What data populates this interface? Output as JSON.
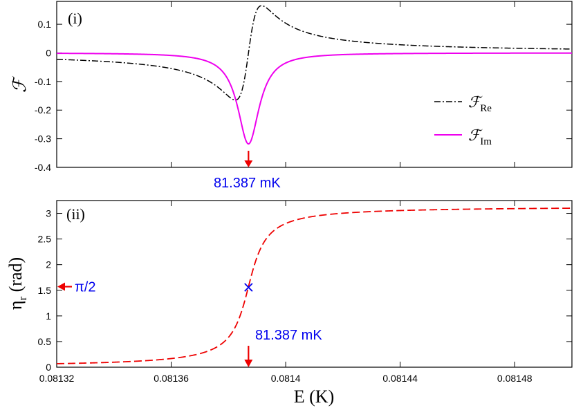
{
  "chart_data": [
    {
      "panel_label": "(i)",
      "type": "line",
      "ylabel": "ℱ",
      "ylim": [
        -0.4,
        0.18
      ],
      "xlim": [
        0.08132,
        0.0815
      ],
      "y_ticks": [
        {
          "value": 0.1,
          "label": "0.1"
        },
        {
          "value": 0,
          "label": "0"
        },
        {
          "value": -0.1,
          "label": "-0.1"
        },
        {
          "value": -0.2,
          "label": "-0.2"
        },
        {
          "value": -0.3,
          "label": "-0.3"
        },
        {
          "value": -0.4,
          "label": "-0.4"
        }
      ],
      "resonance": {
        "E0": 0.081387,
        "gamma": 4.6e-06,
        "amp": 0.318
      },
      "series": [
        {
          "name": "Re",
          "legend_symbol": "ℱ",
          "legend_sub": "Re",
          "color": "#000000",
          "style": "dash-dot"
        },
        {
          "name": "Im",
          "legend_symbol": "ℱ",
          "legend_sub": "Im",
          "color": "#ee00ee",
          "style": "solid"
        }
      ],
      "annotation": {
        "text": "81.387 mK",
        "x": 0.081387,
        "color": "#0000ee",
        "arrow_color": "#ee0000"
      }
    },
    {
      "panel_label": "(ii)",
      "type": "line",
      "xlabel": "E (K)",
      "ylabel_main": "η",
      "ylabel_sub": "r",
      "ylabel_unit": " (rad)",
      "ylim": [
        0,
        3.25
      ],
      "xlim": [
        0.08132,
        0.0815
      ],
      "x_ticks": [
        {
          "value": 0.08132,
          "label": "0.08132"
        },
        {
          "value": 0.08136,
          "label": "0.08136"
        },
        {
          "value": 0.0814,
          "label": "0.0814"
        },
        {
          "value": 0.08144,
          "label": "0.08144"
        },
        {
          "value": 0.08148,
          "label": "0.08148"
        }
      ],
      "y_ticks": [
        {
          "value": 0,
          "label": "0"
        },
        {
          "value": 0.5,
          "label": "0.5"
        },
        {
          "value": 1,
          "label": "1"
        },
        {
          "value": 1.5,
          "label": "1.5"
        },
        {
          "value": 2,
          "label": "2"
        },
        {
          "value": 2.5,
          "label": "2.5"
        },
        {
          "value": 3,
          "label": "3"
        }
      ],
      "series": [
        {
          "name": "eta_r",
          "color": "#ee0000",
          "style": "dashed"
        }
      ],
      "marker": {
        "x": 0.081387,
        "y": 1.5708,
        "symbol": "×",
        "color": "#0000ee"
      },
      "pi_half": {
        "y": 1.5708,
        "text": "π/2",
        "color": "#0000ee",
        "arrow_color": "#ee0000"
      },
      "annotation": {
        "text": "81.387 mK",
        "x": 0.081387,
        "color": "#0000ee",
        "arrow_color": "#ee0000"
      }
    }
  ]
}
